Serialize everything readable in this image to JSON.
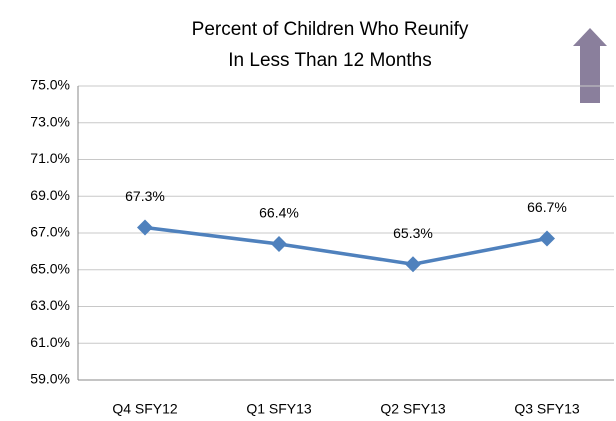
{
  "chart_data": {
    "type": "line",
    "title": [
      "Percent of Children Who Reunify",
      "In Less Than 12 Months"
    ],
    "categories": [
      "Q4 SFY12",
      "Q1 SFY13",
      "Q2 SFY13",
      "Q3 SFY13"
    ],
    "series": [
      {
        "name": "Percent",
        "color": "#4f81bd",
        "values": [
          67.3,
          66.4,
          65.3,
          66.7
        ],
        "value_labels": [
          "67.3%",
          "66.4%",
          "65.3%",
          "66.7%"
        ]
      }
    ],
    "ylim": [
      59,
      75
    ],
    "yticks": [
      {
        "value": 59,
        "label": "59.0%"
      },
      {
        "value": 61,
        "label": "61.0%"
      },
      {
        "value": 63,
        "label": "63.0%"
      },
      {
        "value": 65,
        "label": "65.0%"
      },
      {
        "value": 67,
        "label": "67.0%"
      },
      {
        "value": 69,
        "label": "69.0%"
      },
      {
        "value": 71,
        "label": "71.0%"
      },
      {
        "value": 73,
        "label": "73.0%"
      },
      {
        "value": 75,
        "label": "75.0%"
      }
    ],
    "grid": true
  }
}
